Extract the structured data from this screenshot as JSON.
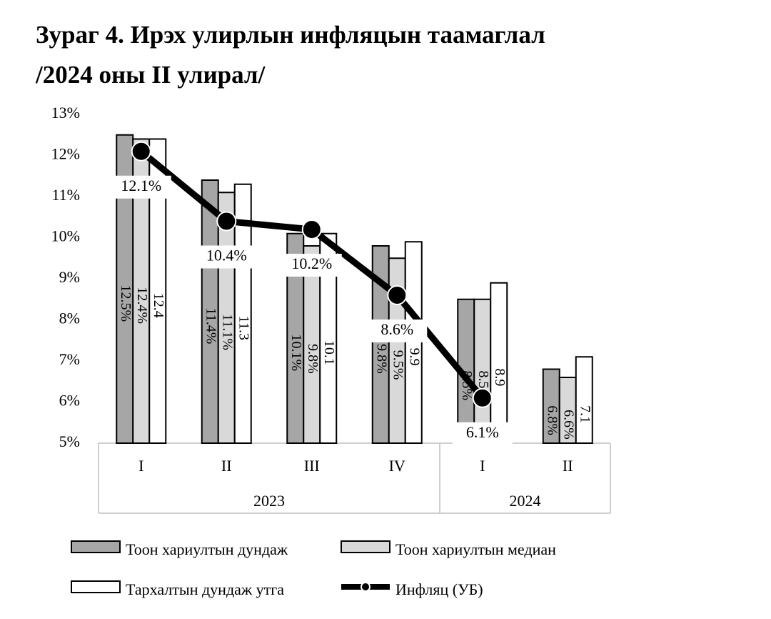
{
  "chart_data": {
    "type": "bar_line",
    "title": "Зураг 4. Ирэх улирлын инфляцын таамаглал",
    "subtitle": "/2024 оны II улирал/",
    "groups": [
      {
        "name": "2023",
        "categories": [
          "I",
          "II",
          "III",
          "IV"
        ]
      },
      {
        "name": "2024",
        "categories": [
          "I",
          "II"
        ]
      }
    ],
    "series": [
      {
        "name": "Тоон хариултын дундаж",
        "type": "bar",
        "color": "#a6a6a6",
        "values": [
          12.5,
          11.4,
          10.1,
          9.8,
          8.5,
          6.8
        ],
        "value_labels": [
          "12.5%",
          "11.4%",
          "10.1%",
          "9.8%",
          "8.5%",
          "6.8%"
        ]
      },
      {
        "name": "Тоон хариултын медиан",
        "type": "bar",
        "color": "#d9d9d9",
        "values": [
          12.4,
          11.1,
          9.8,
          9.5,
          8.5,
          6.6
        ],
        "value_labels": [
          "12.4%",
          "11.1%",
          "9.8%",
          "9.5%",
          "8.5%",
          "6.6%"
        ]
      },
      {
        "name": "Тархалтын дундаж утга",
        "type": "bar",
        "color": "#ffffff",
        "values": [
          12.4,
          11.3,
          10.1,
          9.9,
          8.9,
          7.1
        ],
        "value_labels": [
          "12.4",
          "11.3",
          "10.1",
          "9.9",
          "8.9",
          "7.1"
        ]
      },
      {
        "name": "Инфляц (УБ)",
        "type": "line",
        "color": "#000000",
        "values": [
          12.1,
          10.4,
          10.2,
          8.6,
          6.1,
          null
        ],
        "value_labels": [
          "12.1%",
          "10.4%",
          "10.2%",
          "8.6%",
          "6.1%",
          null
        ]
      }
    ],
    "ylim": [
      5,
      13
    ],
    "yticks": [
      {
        "value": 5,
        "label": "5%"
      },
      {
        "value": 6,
        "label": "6%"
      },
      {
        "value": 7,
        "label": "7%"
      },
      {
        "value": 8,
        "label": "8%"
      },
      {
        "value": 9,
        "label": "9%"
      },
      {
        "value": 10,
        "label": "10%"
      },
      {
        "value": 11,
        "label": "11%"
      },
      {
        "value": 12,
        "label": "12%"
      },
      {
        "value": 13,
        "label": "13%"
      }
    ],
    "grid": false,
    "legend": "bottom"
  }
}
